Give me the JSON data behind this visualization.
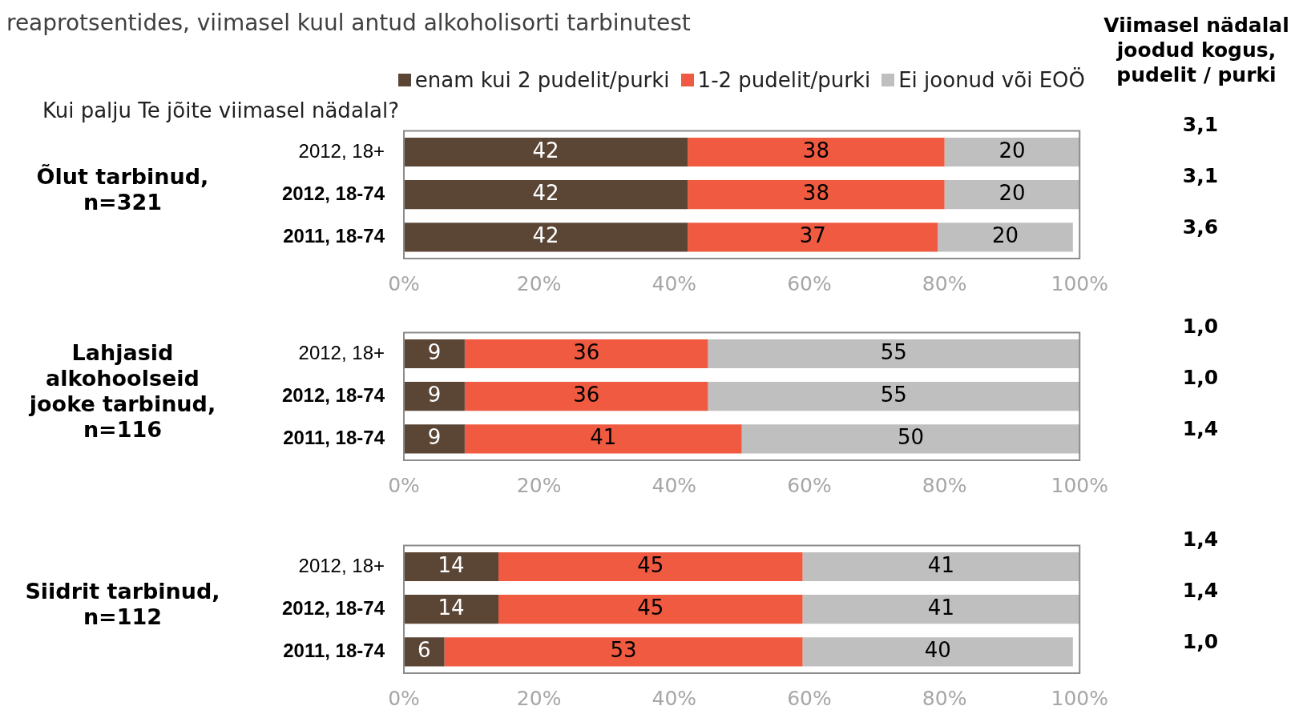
{
  "chart_data": [
    {
      "type": "bar",
      "orientation": "horizontal",
      "stacked": true,
      "subtitle": "reaprotsentides, viimasel kuul antud alkoholisorti tarbinutest",
      "ylabel": "Õlut tarbinud, n=321",
      "annotations": [
        "Kui palju Te jõite viimasel nädalal?"
      ],
      "legend": "top right",
      "data_labels": true,
      "categories": [
        "2012, 18+",
        "2012, 18-74",
        "2011, 18-74"
      ],
      "xlim": [
        0,
        100
      ],
      "xticks": [
        {
          "value": 0,
          "label": "0%"
        },
        {
          "value": 20,
          "label": "20%"
        },
        {
          "value": 40,
          "label": "40%"
        },
        {
          "value": 60,
          "label": "60%"
        },
        {
          "value": 80,
          "label": "80%"
        },
        {
          "value": 100,
          "label": "100%"
        }
      ],
      "series": [
        {
          "name": "enam kui 2 pudelit/purki",
          "color": "#5b4636",
          "values": [
            42,
            42,
            42
          ]
        },
        {
          "name": "1-2 pudelit/purki",
          "color": "#f05a40",
          "values": [
            38,
            38,
            37
          ]
        },
        {
          "name": "Ei joonud või EOÖ",
          "color": "#bfbfbf",
          "values": [
            20,
            20,
            20
          ]
        }
      ]
    },
    {
      "type": "bar",
      "orientation": "horizontal",
      "stacked": true,
      "ylabel": "Lahjasid alkohoolseid jooke tarbinud, n=116",
      "data_labels": true,
      "categories": [
        "2012, 18+",
        "2012, 18-74",
        "2011, 18-74"
      ],
      "xlim": [
        0,
        100
      ],
      "xticks": [
        {
          "value": 0,
          "label": "0%"
        },
        {
          "value": 20,
          "label": "20%"
        },
        {
          "value": 40,
          "label": "40%"
        },
        {
          "value": 60,
          "label": "60%"
        },
        {
          "value": 80,
          "label": "80%"
        },
        {
          "value": 100,
          "label": "100%"
        }
      ],
      "series": [
        {
          "color": "#5b4636",
          "values": [
            9,
            9,
            9
          ]
        },
        {
          "color": "#f05a40",
          "values": [
            36,
            36,
            41
          ]
        },
        {
          "color": "#bfbfbf",
          "values": [
            55,
            55,
            50
          ]
        }
      ]
    },
    {
      "type": "bar",
      "orientation": "horizontal",
      "stacked": true,
      "ylabel": "Siidrit tarbinud, n=112",
      "data_labels": true,
      "categories": [
        "2012, 18+",
        "2012, 18-74",
        "2011, 18-74"
      ],
      "xlim": [
        0,
        100
      ],
      "xticks": [
        {
          "value": 0,
          "label": "0%"
        },
        {
          "value": 20,
          "label": "20%"
        },
        {
          "value": 40,
          "label": "40%"
        },
        {
          "value": 60,
          "label": "60%"
        },
        {
          "value": 80,
          "label": "80%"
        },
        {
          "value": 100,
          "label": "100%"
        }
      ],
      "series": [
        {
          "color": "#5b4636",
          "values": [
            14,
            14,
            6
          ]
        },
        {
          "color": "#f05a40",
          "values": [
            45,
            45,
            53
          ]
        },
        {
          "color": "#bfbfbf",
          "values": [
            41,
            41,
            40
          ]
        }
      ]
    },
    {
      "type": "other",
      "title": "Viimasel nädalal joodud kogus, pudelit / purki",
      "annotations": [
        "3,1",
        "3,1",
        "3,6",
        "1,0",
        "1,0",
        "1,4",
        "1,4",
        "1,4",
        "1,0"
      ]
    }
  ]
}
